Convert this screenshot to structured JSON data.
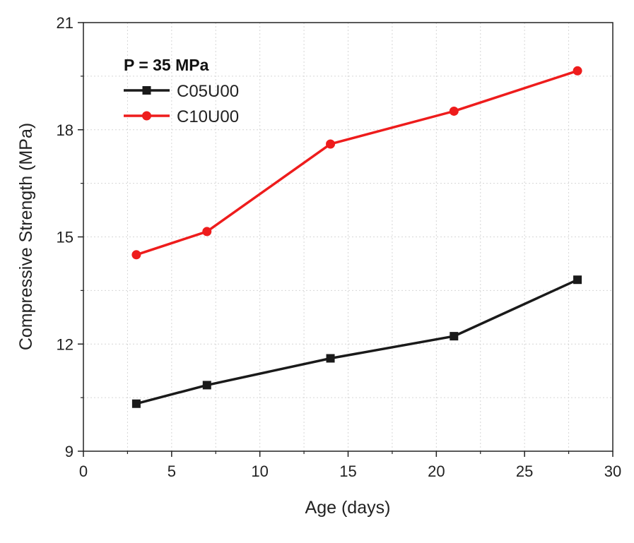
{
  "chart_data": {
    "type": "line",
    "title": "",
    "xlabel": "Age (days)",
    "ylabel": "Compressive Strength (MPa)",
    "xlim": [
      0,
      30
    ],
    "ylim": [
      9,
      21
    ],
    "x_ticks": [
      0,
      5,
      10,
      15,
      20,
      25,
      30
    ],
    "y_ticks": [
      9,
      12,
      15,
      18,
      21
    ],
    "grid": true,
    "legend_position": "top-left",
    "legend_title": "P = 35 MPa",
    "x": [
      3,
      7,
      14,
      21,
      28
    ],
    "series": [
      {
        "name": "C05U00",
        "values": [
          10.33,
          10.85,
          11.6,
          12.22,
          13.8
        ],
        "color": "#1a1a1a",
        "marker": "square"
      },
      {
        "name": "C10U00",
        "values": [
          14.5,
          15.15,
          17.6,
          18.52,
          19.65
        ],
        "color": "#ee1c1c",
        "marker": "circle"
      }
    ]
  }
}
